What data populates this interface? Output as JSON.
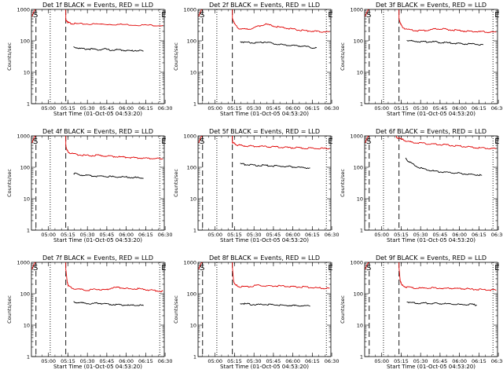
{
  "chart_data": [
    {
      "type": "line",
      "title": "Det 1f BLACK = Events, RED = LLD",
      "xlabel": "Start Time (01-Oct-05 04:53:20)",
      "ylabel": "Counts/sec",
      "yscale": "log",
      "ylim": [
        1,
        1000
      ],
      "xlim_minutes": [
        -6.5,
        96
      ],
      "xtick_labels": [
        "05:00",
        "05:15",
        "05:30",
        "05:45",
        "06:00",
        "06:15",
        "06:30"
      ],
      "ytick_labels": [
        "1",
        "10",
        "100",
        "1000"
      ],
      "markers": {
        "s_label": "S",
        "e_label": "E",
        "dashed_minutes": [
          -3,
          20
        ],
        "dotted_minutes": [
          8,
          92.5
        ]
      },
      "series": [
        {
          "color": "#e00000",
          "x": [
            20,
            21,
            22,
            24,
            28,
            35,
            45,
            55,
            65,
            75,
            85,
            95
          ],
          "y": [
            440,
            420,
            380,
            360,
            350,
            345,
            340,
            335,
            330,
            320,
            315,
            310
          ]
        },
        {
          "color": "#000000",
          "x": [
            26,
            30,
            35,
            40,
            45,
            50,
            55,
            60,
            65,
            70,
            75,
            80
          ],
          "y": [
            65,
            58,
            55,
            55,
            52,
            55,
            50,
            52,
            50,
            48,
            50,
            47
          ]
        }
      ]
    },
    {
      "type": "line",
      "title": "Det 2f BLACK = Events, RED = LLD",
      "xlabel": "Start Time (01-Oct-05 04:53:20)",
      "ylabel": "Counts/sec",
      "yscale": "log",
      "ylim": [
        1,
        1000
      ],
      "xlim_minutes": [
        -6.5,
        96
      ],
      "xtick_labels": [
        "05:00",
        "05:15",
        "05:30",
        "05:45",
        "06:00",
        "06:15",
        "06:30"
      ],
      "ytick_labels": [
        "1",
        "10",
        "100",
        "1000"
      ],
      "markers": {
        "s_label": "S",
        "e_label": "E",
        "dashed_minutes": [
          -3,
          20
        ],
        "dotted_minutes": [
          8,
          92.5
        ]
      },
      "series": [
        {
          "color": "#e00000",
          "x": [
            20,
            21,
            22,
            25,
            30,
            35,
            40,
            45,
            50,
            55,
            60,
            65,
            70,
            75,
            80,
            85,
            90,
            95
          ],
          "y": [
            480,
            420,
            330,
            250,
            230,
            250,
            290,
            340,
            310,
            280,
            260,
            240,
            225,
            210,
            205,
            200,
            195,
            195
          ]
        },
        {
          "color": "#000000",
          "x": [
            26,
            30,
            35,
            40,
            45,
            50,
            55,
            60,
            65,
            70,
            75,
            80,
            85
          ],
          "y": [
            95,
            90,
            88,
            85,
            92,
            85,
            78,
            75,
            72,
            70,
            68,
            62,
            60
          ]
        }
      ]
    },
    {
      "type": "line",
      "title": "Det 3f BLACK = Events, RED = LLD",
      "xlabel": "Start Time (01-Oct-05 04:53:20)",
      "ylabel": "Counts/sec",
      "yscale": "log",
      "ylim": [
        1,
        1000
      ],
      "xlim_minutes": [
        -6.5,
        96
      ],
      "xtick_labels": [
        "05:00",
        "05:15",
        "05:30",
        "05:45",
        "06:00",
        "06:15",
        "06:30"
      ],
      "ytick_labels": [
        "1",
        "10",
        "100",
        "1000"
      ],
      "markers": {
        "s_label": "S",
        "e_label": "E",
        "dashed_minutes": [
          -3,
          20
        ],
        "dotted_minutes": [
          8,
          92.5
        ]
      },
      "series": [
        {
          "color": "#e00000",
          "x": [
            20,
            21,
            22,
            25,
            30,
            35,
            40,
            45,
            50,
            55,
            60,
            65,
            70,
            75,
            80,
            85,
            90,
            95
          ],
          "y": [
            500,
            380,
            290,
            240,
            220,
            210,
            215,
            230,
            240,
            235,
            225,
            215,
            205,
            200,
            195,
            195,
            190,
            190
          ]
        },
        {
          "color": "#000000",
          "x": [
            26,
            30,
            35,
            40,
            45,
            50,
            55,
            60,
            65,
            70,
            75,
            80,
            85
          ],
          "y": [
            105,
            98,
            95,
            92,
            95,
            90,
            88,
            85,
            82,
            80,
            80,
            78,
            75
          ]
        }
      ]
    },
    {
      "type": "line",
      "title": "Det 4f BLACK = Events, RED = LLD",
      "xlabel": "Start Time (01-Oct-05 04:53:20)",
      "ylabel": "Counts/sec",
      "yscale": "log",
      "ylim": [
        1,
        1000
      ],
      "xlim_minutes": [
        -6.5,
        96
      ],
      "xtick_labels": [
        "05:00",
        "05:15",
        "05:30",
        "05:45",
        "06:00",
        "06:15",
        "06:30"
      ],
      "ytick_labels": [
        "1",
        "10",
        "100",
        "1000"
      ],
      "markers": {
        "s_label": "S",
        "e_label": "E",
        "dashed_minutes": [
          -3,
          20
        ],
        "dotted_minutes": [
          8,
          92.5
        ]
      },
      "series": [
        {
          "color": "#e00000",
          "x": [
            20,
            21,
            22,
            25,
            30,
            35,
            40,
            45,
            50,
            55,
            60,
            65,
            70,
            75,
            80,
            85,
            90,
            95
          ],
          "y": [
            500,
            350,
            300,
            270,
            250,
            240,
            235,
            240,
            230,
            225,
            215,
            210,
            205,
            200,
            195,
            190,
            188,
            185
          ]
        },
        {
          "color": "#000000",
          "x": [
            26,
            30,
            35,
            40,
            45,
            50,
            55,
            60,
            65,
            70,
            75,
            80
          ],
          "y": [
            65,
            58,
            55,
            54,
            52,
            52,
            50,
            50,
            49,
            48,
            47,
            45
          ]
        }
      ]
    },
    {
      "type": "line",
      "title": "Det 5f BLACK = Events, RED = LLD",
      "xlabel": "Start Time (01-Oct-05 04:53:20)",
      "ylabel": "Counts/sec",
      "yscale": "log",
      "ylim": [
        1,
        1000
      ],
      "xlim_minutes": [
        -6.5,
        96
      ],
      "xtick_labels": [
        "05:00",
        "05:15",
        "05:30",
        "05:45",
        "06:00",
        "06:15",
        "06:30"
      ],
      "ytick_labels": [
        "1",
        "10",
        "100",
        "1000"
      ],
      "markers": {
        "s_label": "S",
        "e_label": "E",
        "dashed_minutes": [
          -3,
          20
        ],
        "dotted_minutes": [
          8,
          92.5
        ]
      },
      "series": [
        {
          "color": "#e00000",
          "x": [
            20,
            21,
            23,
            26,
            30,
            35,
            40,
            45,
            50,
            55,
            60,
            65,
            70,
            75,
            80,
            85,
            90,
            95
          ],
          "y": [
            620,
            580,
            520,
            500,
            480,
            470,
            470,
            460,
            450,
            440,
            430,
            420,
            420,
            410,
            405,
            400,
            395,
            390
          ]
        },
        {
          "color": "#000000",
          "x": [
            26,
            30,
            35,
            40,
            45,
            50,
            55,
            60,
            65,
            70,
            75,
            80
          ],
          "y": [
            130,
            122,
            118,
            115,
            115,
            112,
            110,
            108,
            105,
            100,
            98,
            95
          ]
        }
      ]
    },
    {
      "type": "line",
      "title": "Det 6f BLACK = Events, RED = LLD",
      "xlabel": "Start Time (01-Oct-05 04:53:20)",
      "ylabel": "Counts/sec",
      "yscale": "log",
      "ylim": [
        1,
        1000
      ],
      "xlim_minutes": [
        -6.5,
        96
      ],
      "xtick_labels": [
        "05:00",
        "05:15",
        "05:30",
        "05:45",
        "06:00",
        "06:15",
        "06:30"
      ],
      "ytick_labels": [
        "1",
        "10",
        "100",
        "1000"
      ],
      "markers": {
        "s_label": "S",
        "e_label": "E",
        "dashed_minutes": [
          -3,
          20
        ],
        "dotted_minutes": [
          8,
          92.5
        ]
      },
      "series": [
        {
          "color": "#e00000",
          "x": [
            18,
            22,
            26,
            30,
            35,
            40,
            45,
            50,
            55,
            60,
            65,
            70,
            75,
            80,
            85,
            90,
            95
          ],
          "y": [
            900,
            780,
            680,
            620,
            600,
            570,
            550,
            540,
            520,
            500,
            480,
            460,
            440,
            420,
            410,
            400,
            390
          ]
        },
        {
          "color": "#000000",
          "x": [
            25,
            27,
            30,
            35,
            40,
            45,
            50,
            55,
            60,
            65,
            70,
            75,
            80,
            84
          ],
          "y": [
            190,
            160,
            130,
            100,
            85,
            78,
            72,
            70,
            68,
            65,
            62,
            60,
            58,
            55
          ]
        }
      ]
    },
    {
      "type": "line",
      "title": "Det 7f BLACK = Events, RED = LLD",
      "xlabel": "Start Time (01-Oct-05 04:53:20)",
      "ylabel": "Counts/sec",
      "yscale": "log",
      "ylim": [
        1,
        1000
      ],
      "xlim_minutes": [
        -6.5,
        96
      ],
      "xtick_labels": [
        "05:00",
        "05:15",
        "05:30",
        "05:45",
        "06:00",
        "06:15",
        "06:30"
      ],
      "ytick_labels": [
        "1",
        "10",
        "100",
        "1000"
      ],
      "markers": {
        "s_label": "S",
        "e_label": "E",
        "dashed_minutes": [
          -3,
          20
        ],
        "dotted_minutes": [
          8,
          92.5
        ]
      },
      "series": [
        {
          "color": "#e00000",
          "x": [
            20,
            21,
            22,
            25,
            30,
            35,
            40,
            45,
            50,
            55,
            60,
            65,
            70,
            75,
            80,
            85,
            90,
            95
          ],
          "y": [
            600,
            250,
            180,
            150,
            140,
            130,
            135,
            140,
            130,
            150,
            160,
            150,
            140,
            145,
            140,
            130,
            125,
            120
          ]
        },
        {
          "color": "#000000",
          "x": [
            26,
            30,
            35,
            40,
            45,
            50,
            55,
            60,
            65,
            70,
            75,
            80
          ],
          "y": [
            55,
            52,
            50,
            48,
            50,
            48,
            46,
            45,
            44,
            42,
            44,
            42
          ]
        }
      ]
    },
    {
      "type": "line",
      "title": "Det 8f BLACK = Events, RED = LLD",
      "xlabel": "Start Time (01-Oct-05 04:53:20)",
      "ylabel": "Counts/sec",
      "yscale": "log",
      "ylim": [
        1,
        1000
      ],
      "xlim_minutes": [
        -6.5,
        96
      ],
      "xtick_labels": [
        "05:00",
        "05:15",
        "05:30",
        "05:45",
        "06:00",
        "06:15",
        "06:30"
      ],
      "ytick_labels": [
        "1",
        "10",
        "100",
        "1000"
      ],
      "markers": {
        "s_label": "S",
        "e_label": "E",
        "dashed_minutes": [
          -3,
          20
        ],
        "dotted_minutes": [
          8,
          92.5
        ]
      },
      "series": [
        {
          "color": "#e00000",
          "x": [
            20,
            21,
            22,
            25,
            30,
            35,
            40,
            45,
            50,
            55,
            60,
            65,
            70,
            75,
            80,
            85,
            90,
            95
          ],
          "y": [
            650,
            250,
            190,
            170,
            165,
            175,
            185,
            180,
            175,
            180,
            175,
            170,
            165,
            165,
            160,
            155,
            150,
            148
          ]
        },
        {
          "color": "#000000",
          "x": [
            26,
            30,
            35,
            40,
            45,
            50,
            55,
            60,
            65,
            70,
            75,
            80
          ],
          "y": [
            50,
            48,
            46,
            45,
            46,
            45,
            44,
            42,
            43,
            41,
            42,
            40
          ]
        }
      ]
    },
    {
      "type": "line",
      "title": "Det 9f BLACK = Events, RED = LLD",
      "xlabel": "Start Time (01-Oct-05 04:53:20)",
      "ylabel": "Counts/sec",
      "yscale": "log",
      "ylim": [
        1,
        1000
      ],
      "xlim_minutes": [
        -6.5,
        96
      ],
      "xtick_labels": [
        "05:00",
        "05:15",
        "05:30",
        "05:45",
        "06:00",
        "06:15",
        "06:30"
      ],
      "ytick_labels": [
        "1",
        "10",
        "100",
        "1000"
      ],
      "markers": {
        "s_label": "S",
        "e_label": "E",
        "dashed_minutes": [
          -3,
          20
        ],
        "dotted_minutes": [
          8,
          92.5
        ]
      },
      "series": [
        {
          "color": "#e00000",
          "x": [
            20,
            21,
            22,
            25,
            30,
            35,
            40,
            45,
            50,
            55,
            60,
            65,
            70,
            75,
            80,
            85,
            90,
            95
          ],
          "y": [
            650,
            260,
            190,
            165,
            155,
            150,
            152,
            155,
            150,
            148,
            150,
            145,
            145,
            140,
            138,
            135,
            132,
            130
          ]
        },
        {
          "color": "#000000",
          "x": [
            26,
            30,
            35,
            40,
            45,
            50,
            55,
            60,
            65,
            70,
            75,
            80
          ],
          "y": [
            55,
            52,
            50,
            50,
            50,
            48,
            48,
            47,
            46,
            45,
            46,
            44
          ]
        }
      ]
    }
  ]
}
